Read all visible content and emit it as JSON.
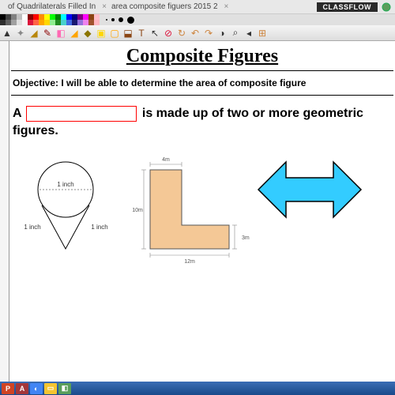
{
  "titlebar": {
    "tab1": "of Quadrilaterals Filled In",
    "tab2": "area composite figuers 2015 2",
    "badge": "CLASSFLOW"
  },
  "palette": {
    "colors_row1": [
      "#000000",
      "#404040",
      "#808080",
      "#c0c0c0",
      "#ffffff",
      "#8b0000",
      "#ff0000",
      "#ff8c00",
      "#ffff00",
      "#00ff00",
      "#008000",
      "#00ffff",
      "#0000ff",
      "#000080",
      "#800080",
      "#ff00ff",
      "#8b4513",
      "#ffc0cb"
    ],
    "colors_row2": [
      "#2f2f2f",
      "#606060",
      "#a0a0a0",
      "#e0e0e0",
      "#f5f5f5",
      "#dc143c",
      "#ff6347",
      "#ffa500",
      "#ffd700",
      "#90ee90",
      "#228b22",
      "#48d1cc",
      "#4169e1",
      "#191970",
      "#9370db",
      "#ee82ee",
      "#a0522d",
      "#ffb6c1"
    ],
    "dot_sizes": [
      2,
      4,
      6,
      9
    ]
  },
  "toolbar": {
    "tools": [
      {
        "n": "pointer",
        "c": "#333"
      },
      {
        "n": "magic",
        "c": "#888"
      },
      {
        "n": "ruler-tool",
        "c": "#b8860b"
      },
      {
        "n": "marker",
        "c": "#8b0000"
      },
      {
        "n": "eraser",
        "c": "#ff69b4"
      },
      {
        "n": "highlighter",
        "c": "#ffa500"
      },
      {
        "n": "shape",
        "c": "#8b7500"
      },
      {
        "n": "fill",
        "c": "#ffd700"
      },
      {
        "n": "box",
        "c": "#ffa500"
      },
      {
        "n": "picker",
        "c": "#8b4513"
      },
      {
        "n": "text",
        "c": "#8b4513"
      },
      {
        "n": "cursor2",
        "c": "#333"
      },
      {
        "n": "reload",
        "c": "#dc143c"
      },
      {
        "n": "refresh",
        "c": "#cd853f"
      },
      {
        "n": "rotate-left",
        "c": "#cd853f"
      },
      {
        "n": "rotate-right",
        "c": "#cd853f"
      },
      {
        "n": "contrast",
        "c": "#333"
      },
      {
        "n": "zoom",
        "c": "#333"
      },
      {
        "n": "prev",
        "c": "#333"
      },
      {
        "n": "grid",
        "c": "#cd853f"
      }
    ]
  },
  "page": {
    "title": "Composite Figures",
    "objective": "Objective: I will be able to determine the area of composite figure",
    "sentence_a": "A",
    "sentence_b": "is made up of two or more geometric figures."
  },
  "teardrop": {
    "label_top": "1 inch",
    "label_left": "1 inch",
    "label_right": "1 inch",
    "stroke": "#000000",
    "dash_color": "#666666"
  },
  "lshape": {
    "fill": "#f4c896",
    "stroke": "#555555",
    "label_top": "4m",
    "label_left": "10m",
    "label_right": "3m",
    "label_bottom": "12m",
    "line_color": "#888888"
  },
  "arrow": {
    "fill": "#33ccff",
    "stroke": "#000000"
  },
  "taskbar": {
    "items": [
      {
        "n": "powerpoint",
        "bg": "#d04423",
        "t": "P"
      },
      {
        "n": "access",
        "bg": "#a4373a",
        "t": "A"
      },
      {
        "n": "chrome",
        "bg": "#4285f4",
        "t": "◐"
      },
      {
        "n": "folder",
        "bg": "#f4c430",
        "t": "▭"
      },
      {
        "n": "app",
        "bg": "#5a9e5a",
        "t": "◧"
      }
    ]
  }
}
